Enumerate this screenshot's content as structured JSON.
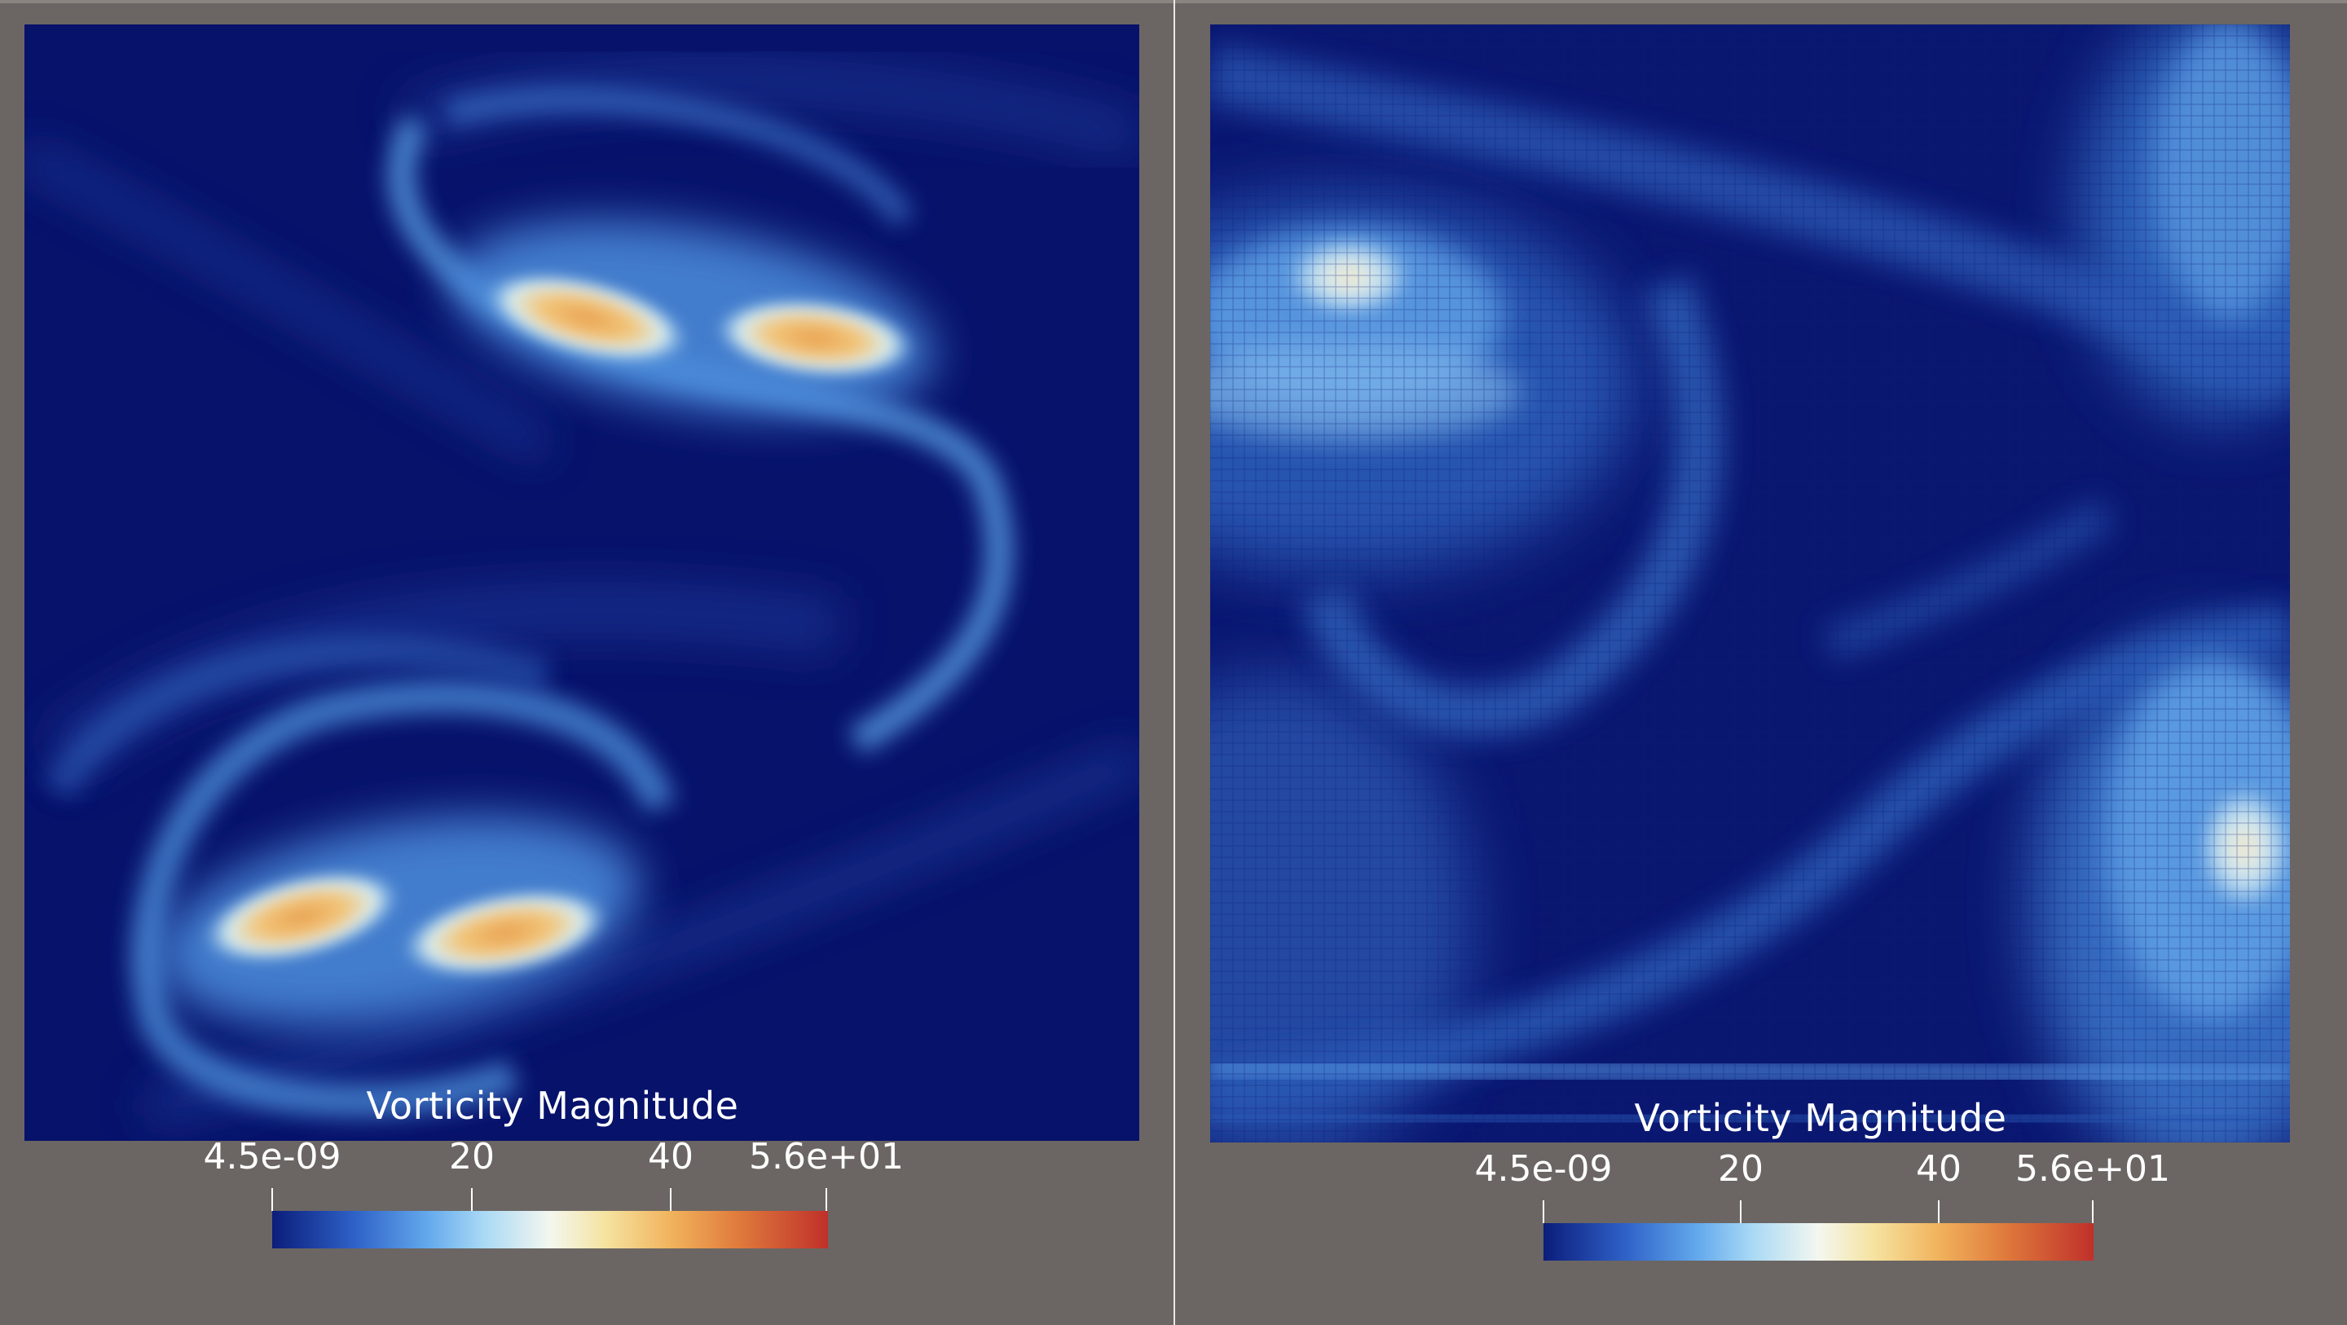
{
  "panels": [
    {
      "id": "left",
      "colorbar": {
        "title": "Vorticity Magnitude",
        "tick_labels": [
          "4.5e-09",
          "20",
          "40",
          "5.6e+01"
        ],
        "tick_values": [
          4.5e-09,
          20,
          40,
          56
        ],
        "range": [
          4.5e-09,
          56
        ]
      }
    },
    {
      "id": "right",
      "colorbar": {
        "title": "Vorticity Magnitude",
        "tick_labels": [
          "4.5e-09",
          "20",
          "40",
          "5.6e+01"
        ],
        "tick_values": [
          4.5e-09,
          20,
          40,
          56
        ],
        "range": [
          4.5e-09,
          56
        ]
      }
    }
  ],
  "colors": {
    "background": "#6b6663",
    "field_low": "#07126b",
    "field_mid": "#63a9ec",
    "field_high": "#c0302a"
  }
}
